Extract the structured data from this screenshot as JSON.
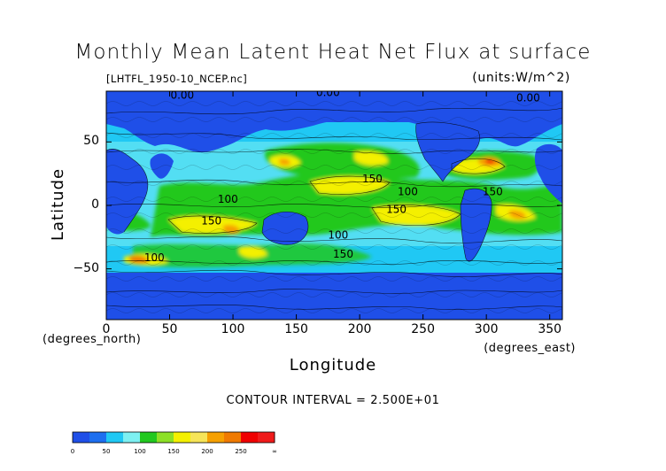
{
  "figure": {
    "title": "Monthly Mean Latent Heat Net Flux at surface",
    "file_label": "[LHTFL_1950-10_NCEP.nc]",
    "units_label": "(units:W/m^2)",
    "contour_interval": "CONTOUR INTERVAL = 2.500E+01"
  },
  "chart_data": {
    "type": "heatmap",
    "title": "Monthly Mean Latent Heat Net Flux at surface",
    "xlabel": "Longitude",
    "ylabel": "Latitude",
    "x_units": "(degrees_east)",
    "y_units": "(degrees_north)",
    "xlim": [
      0,
      360
    ],
    "ylim": [
      -90,
      90
    ],
    "x_ticks": [
      "0",
      "50",
      "100",
      "150",
      "200",
      "250",
      "300",
      "350"
    ],
    "y_ticks": [
      "50",
      "0",
      "−50"
    ],
    "x_tick_values": [
      0,
      50,
      100,
      150,
      200,
      250,
      300,
      350
    ],
    "y_tick_values": [
      50,
      0,
      -50
    ],
    "contour_labels": [
      {
        "text": "0.00",
        "lon": 60,
        "lat": 84
      },
      {
        "text": "0.00",
        "lon": 175,
        "lat": 86
      },
      {
        "text": "0.00",
        "lon": 333,
        "lat": 82
      },
      {
        "text": "150",
        "lon": 210,
        "lat": 18
      },
      {
        "text": "100",
        "lon": 238,
        "lat": 8
      },
      {
        "text": "100",
        "lon": 96,
        "lat": 2
      },
      {
        "text": "150",
        "lon": 83,
        "lat": -15
      },
      {
        "text": "150",
        "lon": 229,
        "lat": -6
      },
      {
        "text": "100",
        "lon": 183,
        "lat": -26
      },
      {
        "text": "150",
        "lon": 187,
        "lat": -41
      },
      {
        "text": "100",
        "lon": 38,
        "lat": -44
      },
      {
        "text": "150",
        "lon": 305,
        "lat": 8
      }
    ],
    "colorbar": {
      "levels": [
        "0",
        "50",
        "100",
        "150",
        "200",
        "250",
        "∞"
      ],
      "bins": [
        {
          "from": 0,
          "to": 25,
          "color": "#1f4fe8"
        },
        {
          "from": 25,
          "to": 50,
          "color": "#1d6ff0"
        },
        {
          "from": 50,
          "to": 75,
          "color": "#20c8f4"
        },
        {
          "from": 75,
          "to": 100,
          "color": "#7df0f2"
        },
        {
          "from": 100,
          "to": 125,
          "color": "#22c81f"
        },
        {
          "from": 125,
          "to": 150,
          "color": "#8ce026"
        },
        {
          "from": 150,
          "to": 175,
          "color": "#f4f000"
        },
        {
          "from": 175,
          "to": 200,
          "color": "#f6e458"
        },
        {
          "from": 200,
          "to": 225,
          "color": "#f6a000"
        },
        {
          "from": 225,
          "to": 250,
          "color": "#f07a00"
        },
        {
          "from": 250,
          "to": 275,
          "color": "#f00000"
        },
        {
          "from": 275,
          "to": 300,
          "color": "#f01a1a"
        }
      ]
    }
  }
}
